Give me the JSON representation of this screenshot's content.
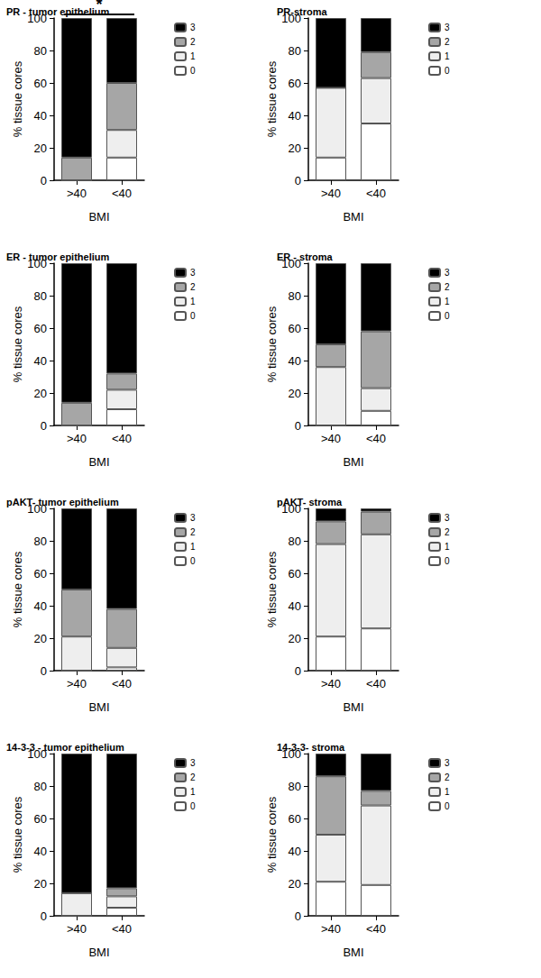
{
  "chart_data": [
    {
      "type": "bar",
      "stacked": true,
      "title": "PR - tumor epithelium",
      "x_label": "BMI",
      "y_label": "% tissue cores",
      "categories": [
        ">40",
        "<40"
      ],
      "ylim": [
        0,
        100
      ],
      "yticks": [
        0,
        20,
        40,
        60,
        80,
        100
      ],
      "legend": "right",
      "series": [
        {
          "name": "0",
          "color": "#ffffff",
          "values": [
            0,
            14
          ]
        },
        {
          "name": "1",
          "color": "#eeeeee",
          "values": [
            0,
            17
          ]
        },
        {
          "name": "2",
          "color": "#a6a6a6",
          "values": [
            14,
            29
          ]
        },
        {
          "name": "3",
          "color": "#000000",
          "values": [
            86,
            40
          ]
        }
      ],
      "annotations": [
        {
          "text": "*",
          "from": ">40",
          "to": "<40"
        }
      ]
    },
    {
      "type": "bar",
      "stacked": true,
      "title": "PR-stroma",
      "x_label": "BMI",
      "y_label": "% tissue cores",
      "categories": [
        ">40",
        "<40"
      ],
      "ylim": [
        0,
        100
      ],
      "yticks": [
        0,
        20,
        40,
        60,
        80,
        100
      ],
      "legend": "right",
      "series": [
        {
          "name": "0",
          "color": "#ffffff",
          "values": [
            14,
            35
          ]
        },
        {
          "name": "1",
          "color": "#eeeeee",
          "values": [
            43,
            28
          ]
        },
        {
          "name": "2",
          "color": "#a6a6a6",
          "values": [
            0,
            16
          ]
        },
        {
          "name": "3",
          "color": "#000000",
          "values": [
            43,
            21
          ]
        }
      ]
    },
    {
      "type": "bar",
      "stacked": true,
      "title": "ER - tumor epithelium",
      "x_label": "BMI",
      "y_label": "% tissue cores",
      "categories": [
        ">40",
        "<40"
      ],
      "ylim": [
        0,
        100
      ],
      "yticks": [
        0,
        20,
        40,
        60,
        80,
        100
      ],
      "legend": "right",
      "series": [
        {
          "name": "0",
          "color": "#ffffff",
          "values": [
            0,
            10
          ]
        },
        {
          "name": "1",
          "color": "#eeeeee",
          "values": [
            0,
            12
          ]
        },
        {
          "name": "2",
          "color": "#a6a6a6",
          "values": [
            14,
            10
          ]
        },
        {
          "name": "3",
          "color": "#000000",
          "values": [
            86,
            68
          ]
        }
      ]
    },
    {
      "type": "bar",
      "stacked": true,
      "title": "ER - stroma",
      "x_label": "BMI",
      "y_label": "% tissue cores",
      "categories": [
        ">40",
        "<40"
      ],
      "ylim": [
        0,
        100
      ],
      "yticks": [
        0,
        20,
        40,
        60,
        80,
        100
      ],
      "legend": "right",
      "series": [
        {
          "name": "0",
          "color": "#ffffff",
          "values": [
            0,
            9
          ]
        },
        {
          "name": "1",
          "color": "#eeeeee",
          "values": [
            36,
            14
          ]
        },
        {
          "name": "2",
          "color": "#a6a6a6",
          "values": [
            14,
            35
          ]
        },
        {
          "name": "3",
          "color": "#000000",
          "values": [
            50,
            42
          ]
        }
      ]
    },
    {
      "type": "bar",
      "stacked": true,
      "title": "pAKT- tumor epithelium",
      "x_label": "BMI",
      "y_label": "% tissue cores",
      "categories": [
        ">40",
        "<40"
      ],
      "ylim": [
        0,
        100
      ],
      "yticks": [
        0,
        20,
        40,
        60,
        80,
        100
      ],
      "legend": "right",
      "series": [
        {
          "name": "0",
          "color": "#ffffff",
          "values": [
            0,
            2
          ]
        },
        {
          "name": "1",
          "color": "#eeeeee",
          "values": [
            21,
            12
          ]
        },
        {
          "name": "2",
          "color": "#a6a6a6",
          "values": [
            29,
            24
          ]
        },
        {
          "name": "3",
          "color": "#000000",
          "values": [
            50,
            62
          ]
        }
      ]
    },
    {
      "type": "bar",
      "stacked": true,
      "title": "pAKT- stroma",
      "x_label": "BMI",
      "y_label": "% tissue cores",
      "categories": [
        ">40",
        "<40"
      ],
      "ylim": [
        0,
        100
      ],
      "yticks": [
        0,
        20,
        40,
        60,
        80,
        100
      ],
      "legend": "right",
      "series": [
        {
          "name": "0",
          "color": "#ffffff",
          "values": [
            21,
            26
          ]
        },
        {
          "name": "1",
          "color": "#eeeeee",
          "values": [
            57,
            58
          ]
        },
        {
          "name": "2",
          "color": "#a6a6a6",
          "values": [
            14,
            14
          ]
        },
        {
          "name": "3",
          "color": "#000000",
          "values": [
            8,
            2
          ]
        }
      ]
    },
    {
      "type": "bar",
      "stacked": true,
      "title": "14-3-3 - tumor epithelium",
      "x_label": "BMI",
      "y_label": "% tissue cores",
      "categories": [
        ">40",
        "<40"
      ],
      "ylim": [
        0,
        100
      ],
      "yticks": [
        0,
        20,
        40,
        60,
        80,
        100
      ],
      "legend": "right",
      "series": [
        {
          "name": "0",
          "color": "#ffffff",
          "values": [
            0,
            5
          ]
        },
        {
          "name": "1",
          "color": "#eeeeee",
          "values": [
            14,
            7
          ]
        },
        {
          "name": "2",
          "color": "#a6a6a6",
          "values": [
            0,
            5
          ]
        },
        {
          "name": "3",
          "color": "#000000",
          "values": [
            86,
            83
          ]
        }
      ]
    },
    {
      "type": "bar",
      "stacked": true,
      "title": "14-3-3- stroma",
      "x_label": "BMI",
      "y_label": "% tissue cores",
      "categories": [
        ">40",
        "<40"
      ],
      "ylim": [
        0,
        100
      ],
      "yticks": [
        0,
        20,
        40,
        60,
        80,
        100
      ],
      "legend": "right",
      "series": [
        {
          "name": "0",
          "color": "#ffffff",
          "values": [
            21,
            19
          ]
        },
        {
          "name": "1",
          "color": "#eeeeee",
          "values": [
            29,
            49
          ]
        },
        {
          "name": "2",
          "color": "#a6a6a6",
          "values": [
            36,
            9
          ]
        },
        {
          "name": "3",
          "color": "#000000",
          "values": [
            14,
            23
          ]
        }
      ]
    }
  ]
}
